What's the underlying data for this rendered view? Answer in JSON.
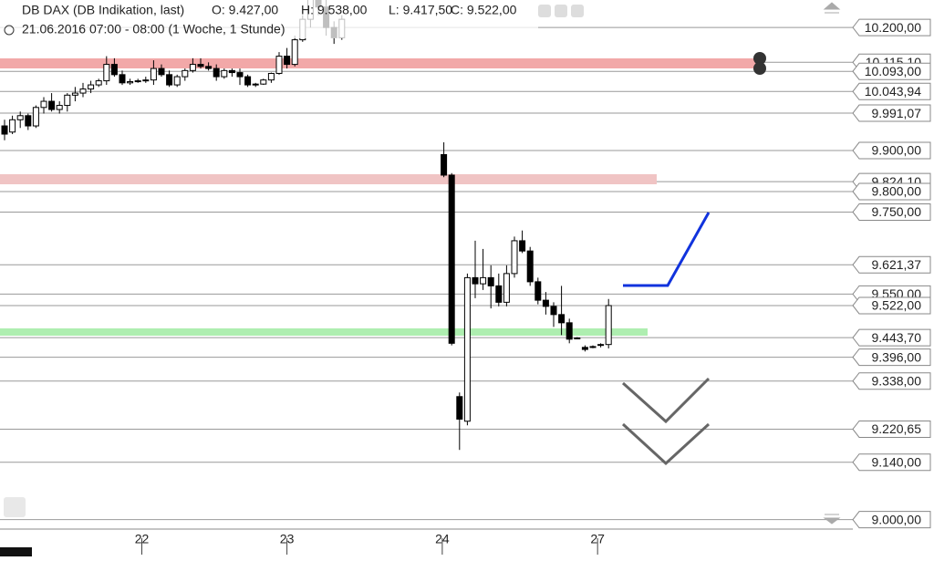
{
  "chart_data": {
    "type": "candlestick",
    "header": {
      "title": "DB DAX (DB Indikation, last)",
      "open": "O: 9.427,00",
      "high": "H: 9.538,00",
      "low": "L: 9.417,50",
      "close": "C: 9.522,00",
      "period": "21.06.2016 07:00 - 08:00 (1 Woche, 1 Stunde)"
    },
    "x": [
      0,
      1,
      2,
      3,
      4,
      5,
      6,
      7,
      8,
      9,
      10,
      11,
      12,
      13,
      14,
      15,
      16,
      17,
      18,
      19,
      20,
      21,
      22,
      23,
      24,
      25,
      26,
      27,
      28,
      29,
      30,
      31,
      32,
      33,
      34,
      35,
      36,
      37,
      38,
      39,
      40,
      41,
      42,
      43,
      56,
      57,
      58,
      59,
      60,
      61,
      62,
      63,
      64,
      65,
      66,
      67,
      68,
      69,
      70,
      71,
      72,
      73,
      74,
      75,
      76,
      77
    ],
    "open": [
      9960,
      9945,
      9975,
      9985,
      9960,
      10005,
      10020,
      10000,
      10010,
      10035,
      10040,
      10050,
      10060,
      10070,
      10110,
      10085,
      10065,
      10068,
      10070,
      10072,
      10100,
      10085,
      10060,
      10080,
      10095,
      10110,
      10105,
      10100,
      10080,
      10095,
      10090,
      10080,
      10060,
      10062,
      10072,
      10088,
      10130,
      10110,
      10170,
      10220,
      10270,
      10250,
      10200,
      10175,
      9890,
      9840,
      9300,
      9240,
      9590,
      9575,
      9590,
      9570,
      9530,
      9600,
      9680,
      9655,
      9580,
      9535,
      9520,
      9500,
      9480,
      9443,
      9420,
      9420,
      9427,
      9427
    ],
    "high": [
      9975,
      9985,
      9995,
      9990,
      10010,
      10030,
      10040,
      10020,
      10040,
      10055,
      10065,
      10070,
      10075,
      10130,
      10125,
      10095,
      10075,
      10075,
      10080,
      10120,
      10110,
      10095,
      10085,
      10100,
      10125,
      10125,
      10115,
      10110,
      10100,
      10100,
      10100,
      10085,
      10065,
      10075,
      10090,
      10140,
      10150,
      10180,
      10230,
      10280,
      10300,
      10290,
      10215,
      10230,
      9920,
      9845,
      9310,
      9600,
      9680,
      9660,
      9620,
      9600,
      9620,
      9690,
      9705,
      9665,
      9590,
      9555,
      9530,
      9570,
      9490,
      9445,
      9425,
      9425,
      9430,
      9538
    ],
    "low": [
      9925,
      9940,
      9955,
      9950,
      9955,
      9990,
      9995,
      9990,
      9995,
      10020,
      10030,
      10040,
      10055,
      10060,
      10080,
      10060,
      10060,
      10065,
      10065,
      10060,
      10080,
      10055,
      10055,
      10070,
      10090,
      10100,
      10095,
      10070,
      10075,
      10080,
      10060,
      10055,
      10055,
      10060,
      10065,
      10085,
      10100,
      10105,
      10165,
      10200,
      10230,
      10180,
      10160,
      10170,
      9835,
      9425,
      9170,
      9230,
      9540,
      9560,
      9515,
      9520,
      9520,
      9590,
      9650,
      9570,
      9525,
      9500,
      9470,
      9450,
      9430,
      9440,
      9410,
      9418,
      9420,
      9417.5
    ],
    "close": [
      9940,
      9975,
      9985,
      9960,
      10005,
      10020,
      10000,
      10010,
      10035,
      10040,
      10050,
      10060,
      10070,
      10110,
      10085,
      10065,
      10068,
      10070,
      10072,
      10100,
      10085,
      10060,
      10080,
      10095,
      10110,
      10105,
      10100,
      10080,
      10095,
      10090,
      10080,
      10060,
      10062,
      10072,
      10088,
      10130,
      10110,
      10170,
      10220,
      10270,
      10250,
      10200,
      10175,
      10220,
      9840,
      9430,
      9245,
      9590,
      9575,
      9590,
      9570,
      9530,
      9600,
      9680,
      9655,
      9580,
      9535,
      9520,
      9500,
      9480,
      9440,
      9442,
      9415,
      9422,
      9425,
      9522
    ],
    "xlim": [
      -0.5,
      117
    ],
    "xticks": [
      {
        "value": 17.5,
        "label": "22"
      },
      {
        "value": 36,
        "label": "23"
      },
      {
        "value": 55.8,
        "label": "24"
      },
      {
        "value": 75.6,
        "label": "27"
      }
    ],
    "ylim": [
      8977,
      10267
    ],
    "yticks": [
      {
        "value": 10200,
        "label": "10.200,00"
      },
      {
        "value": 10115.1,
        "label": "10.115,10"
      },
      {
        "value": 10093,
        "label": "10.093,00"
      },
      {
        "value": 10043.94,
        "label": "10.043,94"
      },
      {
        "value": 9991.07,
        "label": "9.991,07"
      },
      {
        "value": 9900,
        "label": "9.900,00"
      },
      {
        "value": 9824.1,
        "label": "9.824,10"
      },
      {
        "value": 9800,
        "label": "9.800,00"
      },
      {
        "value": 9750,
        "label": "9.750,00"
      },
      {
        "value": 9621.37,
        "label": "9.621,37"
      },
      {
        "value": 9550,
        "label": "9.550,00"
      },
      {
        "value": 9522,
        "label": "9.522,00"
      },
      {
        "value": 9443.7,
        "label": "9.443,70"
      },
      {
        "value": 9396,
        "label": "9.396,00"
      },
      {
        "value": 9338,
        "label": "9.338,00"
      },
      {
        "value": 9220.65,
        "label": "9.220,65"
      },
      {
        "value": 9140,
        "label": "9.140,00"
      },
      {
        "value": 9000,
        "label": "9.000,00"
      }
    ],
    "up_color": "#ffffff",
    "down_color": "#000000",
    "grid": true
  }
}
